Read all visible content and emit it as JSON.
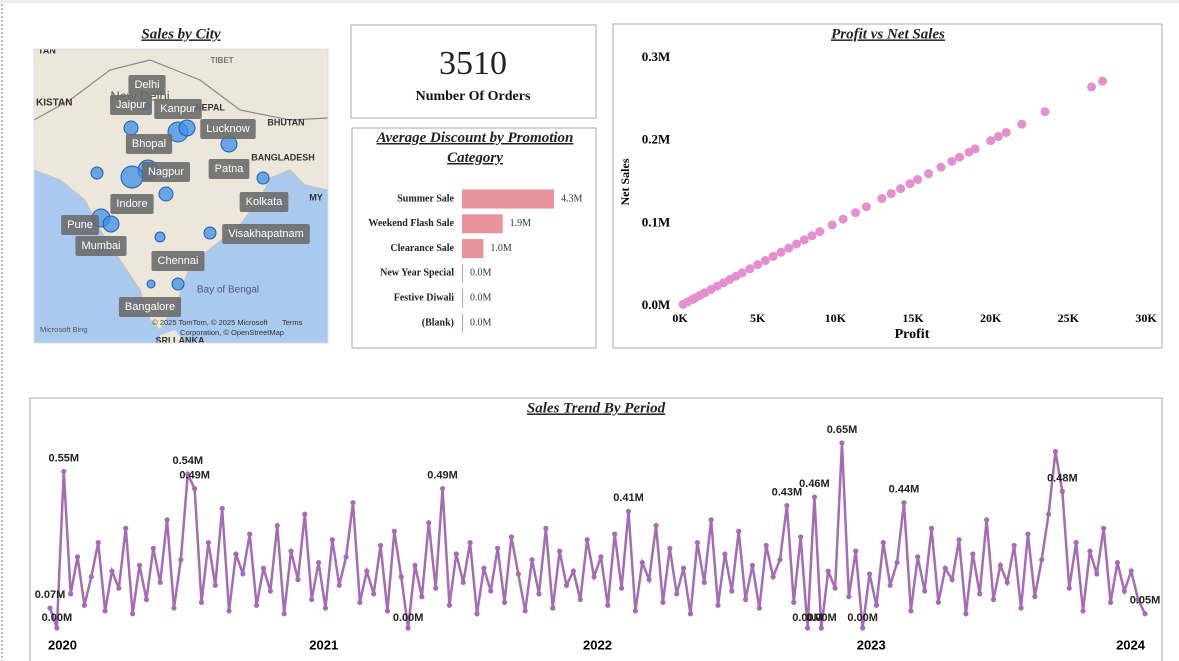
{
  "map": {
    "title": "Sales by City",
    "cities": [
      "Delhi",
      "Jaipur",
      "Kanpur",
      "Lucknow",
      "Bhopal",
      "Nagpur",
      "Patna",
      "Indore",
      "Kolkata",
      "Pune",
      "Mumbai",
      "Visakhapatnam",
      "Chennai",
      "Bangalore"
    ],
    "places": [
      "TAN",
      "TIBET",
      "KISTAN",
      "New Delhi",
      "NEPAL",
      "BHUTAN",
      "BANGLADESH",
      "MY",
      "Bay of Bengal",
      "SRI LANKA"
    ],
    "attribution": [
      "Microsoft Bing",
      "© 2025 TomTom, © 2025 Microsoft",
      "Terms",
      "Corporation, © OpenStreetMap"
    ]
  },
  "card": {
    "value": "3510",
    "label": "Number Of Orders"
  },
  "chart_data": [
    {
      "type": "bar",
      "title": "Average Discount by Promotion Category",
      "orientation": "horizontal",
      "categories": [
        "Summer Sale",
        "Weekend Flash Sale",
        "Clearance Sale",
        "New Year Special",
        "Festive Diwali",
        "(Blank)"
      ],
      "values": [
        4.3,
        1.9,
        1.0,
        0.0,
        0.0,
        0.0
      ],
      "value_labels": [
        "4.3M",
        "1.9M",
        "1.0M",
        "0.0M",
        "0.0M",
        "0.0M"
      ],
      "color": "#e8929b"
    },
    {
      "type": "scatter",
      "title": "Profit vs Net Sales",
      "x_label": "Profit",
      "y_label": "Net Sales",
      "color": "#e58fce",
      "xlim": [
        0,
        30000
      ],
      "ylim": [
        0,
        300000
      ],
      "xticks": [
        {
          "value": 0,
          "label": "0K"
        },
        {
          "value": 5000,
          "label": "5K"
        },
        {
          "value": 10000,
          "label": "10K"
        },
        {
          "value": 15000,
          "label": "15K"
        },
        {
          "value": 20000,
          "label": "20K"
        },
        {
          "value": 25000,
          "label": "25K"
        },
        {
          "value": 30000,
          "label": "30K"
        }
      ],
      "yticks": [
        {
          "value": 0,
          "label": "0.0M"
        },
        {
          "value": 100000,
          "label": "0.1M"
        },
        {
          "value": 200000,
          "label": "0.2M"
        },
        {
          "value": 300000,
          "label": "0.3M"
        }
      ],
      "x": [
        200,
        500,
        800,
        1000,
        1300,
        1600,
        2000,
        2400,
        2800,
        3200,
        3600,
        4000,
        4500,
        5000,
        5500,
        6000,
        6500,
        7000,
        7500,
        8000,
        8500,
        9000,
        9800,
        10500,
        11300,
        12000,
        13000,
        13600,
        14200,
        14800,
        15300,
        16000,
        16800,
        17500,
        18000,
        18600,
        19000,
        20000,
        20500,
        21000,
        22000,
        23500,
        26500,
        27200
      ],
      "values": [
        2000,
        5000,
        8000,
        10000,
        13000,
        16000,
        20000,
        24000,
        28000,
        32000,
        36000,
        40000,
        45000,
        50000,
        55000,
        60000,
        65000,
        70000,
        75000,
        80000,
        85000,
        90000,
        98000,
        105000,
        113000,
        120000,
        130000,
        136000,
        142000,
        148000,
        153000,
        160000,
        168000,
        175000,
        180000,
        186000,
        190000,
        200000,
        205000,
        210000,
        220000,
        235000,
        265000,
        272000
      ]
    },
    {
      "type": "line",
      "title": "Sales Trend By Period",
      "color": "#a66bb4",
      "xlim": [
        2020,
        2024
      ],
      "xticks": [
        2020,
        2021,
        2022,
        2023,
        2024
      ],
      "ylim": [
        0,
        0.65
      ],
      "values": [
        0.07,
        0,
        0.55,
        0.12,
        0.25,
        0.08,
        0.18,
        0.3,
        0.06,
        0.2,
        0.14,
        0.35,
        0.05,
        0.22,
        0.1,
        0.28,
        0.16,
        0.38,
        0.07,
        0.24,
        0.54,
        0.49,
        0.09,
        0.3,
        0.15,
        0.42,
        0.06,
        0.26,
        0.19,
        0.33,
        0.08,
        0.21,
        0.13,
        0.36,
        0.05,
        0.27,
        0.17,
        0.4,
        0.1,
        0.23,
        0.07,
        0.31,
        0.15,
        0.25,
        0.44,
        0.09,
        0.2,
        0.12,
        0.29,
        0.06,
        0.34,
        0.18,
        0,
        0.22,
        0.11,
        0.37,
        0.14,
        0.49,
        0.08,
        0.26,
        0.16,
        0.3,
        0.05,
        0.21,
        0.13,
        0.28,
        0.09,
        0.32,
        0.19,
        0.06,
        0.24,
        0.12,
        0.35,
        0.07,
        0.27,
        0.15,
        0.2,
        0.1,
        0.31,
        0.18,
        0.25,
        0.08,
        0.33,
        0.14,
        0.41,
        0.06,
        0.23,
        0.17,
        0.36,
        0.09,
        0.28,
        0.12,
        0.21,
        0.05,
        0.3,
        0.16,
        0.38,
        0.08,
        0.26,
        0.13,
        0.34,
        0.1,
        0.22,
        0.07,
        0.29,
        0.18,
        0.24,
        0.43,
        0.09,
        0.32,
        0,
        0.46,
        0,
        0.2,
        0.14,
        0.65,
        0.11,
        0.27,
        0,
        0.19,
        0.08,
        0.3,
        0.15,
        0.23,
        0.44,
        0.06,
        0.25,
        0.13,
        0.35,
        0.09,
        0.21,
        0.17,
        0.31,
        0.05,
        0.26,
        0.12,
        0.38,
        0.1,
        0.22,
        0.16,
        0.29,
        0.07,
        0.33,
        0.11,
        0.24,
        0.4,
        0.62,
        0.48,
        0.14,
        0.3,
        0.06,
        0.27,
        0.19,
        0.35,
        0.09,
        0.23,
        0.13,
        0.2,
        0.1,
        0.05
      ],
      "value_labels": [
        "0.07M",
        "0.00M",
        "0.55M",
        null,
        null,
        null,
        null,
        null,
        null,
        null,
        null,
        null,
        null,
        null,
        null,
        null,
        null,
        null,
        null,
        null,
        "0.54M",
        "0.49M",
        null,
        null,
        null,
        null,
        null,
        null,
        null,
        null,
        null,
        null,
        null,
        null,
        null,
        null,
        null,
        null,
        null,
        null,
        null,
        null,
        null,
        null,
        null,
        null,
        null,
        null,
        null,
        null,
        null,
        null,
        "0.00M",
        null,
        null,
        null,
        null,
        "0.49M",
        null,
        null,
        null,
        null,
        null,
        null,
        null,
        null,
        null,
        null,
        null,
        null,
        null,
        null,
        null,
        null,
        null,
        null,
        null,
        null,
        null,
        null,
        null,
        null,
        null,
        null,
        "0.41M",
        null,
        null,
        null,
        null,
        null,
        null,
        null,
        null,
        null,
        null,
        null,
        null,
        null,
        null,
        null,
        null,
        null,
        null,
        null,
        null,
        null,
        null,
        "0.43M",
        null,
        null,
        "0.00M",
        "0.46M",
        "0.00M",
        null,
        null,
        "0.65M",
        null,
        null,
        "0.00M",
        null,
        null,
        null,
        null,
        null,
        "0.44M",
        null,
        null,
        null,
        null,
        null,
        null,
        null,
        null,
        null,
        null,
        null,
        null,
        null,
        null,
        null,
        null,
        null,
        null,
        null,
        null,
        null,
        null,
        "0.48M",
        null,
        null,
        null,
        null,
        null,
        null,
        null,
        null,
        null,
        null,
        null,
        "0.05M"
      ]
    }
  ]
}
